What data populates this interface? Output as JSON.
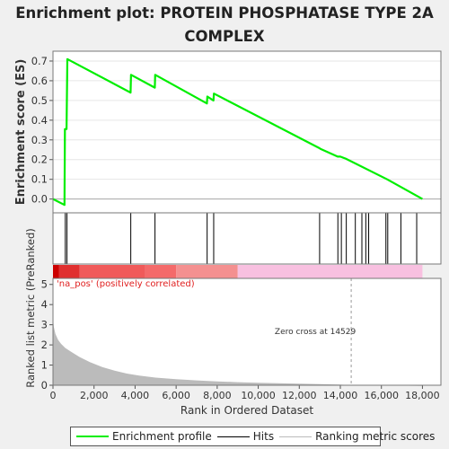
{
  "title_line1": "Enrichment plot: PROTEIN PHOSPHATASE TYPE 2A",
  "title_line2": "COMPLEX",
  "colors": {
    "es_line": "#00ee00",
    "hits": "#000000",
    "metric_fill": "#bbbbbb",
    "pos_label": "#e02020",
    "zero_line": "#aaaaaa"
  },
  "chart_data": [
    {
      "type": "line",
      "name": "enrichment-score",
      "ylabel": "Enrichment score (ES)",
      "xlim": [
        0,
        18900
      ],
      "ylim": [
        -0.07,
        0.75
      ],
      "yticks": [
        "0.0",
        "0.1",
        "0.2",
        "0.3",
        "0.4",
        "0.5",
        "0.6",
        "0.7"
      ],
      "ytick_values": [
        0,
        0.1,
        0.2,
        0.3,
        0.4,
        0.5,
        0.6,
        0.7
      ],
      "x": [
        0,
        560,
        580,
        660,
        700,
        3780,
        3800,
        4960,
        4980,
        7500,
        7520,
        7820,
        7840,
        12950,
        13030,
        13870,
        14000,
        14260,
        16280,
        18000
      ],
      "y": [
        0.0,
        -0.03,
        0.355,
        0.355,
        0.71,
        0.54,
        0.63,
        0.565,
        0.63,
        0.485,
        0.52,
        0.5,
        0.535,
        0.26,
        0.255,
        0.215,
        0.215,
        0.205,
        0.1,
        0.0
      ]
    },
    {
      "type": "scatter",
      "name": "hits",
      "x": [
        600,
        680,
        3790,
        4970,
        7510,
        7830,
        12990,
        13880,
        14050,
        14290,
        14730,
        15050,
        15240,
        15380,
        16220,
        16310,
        16950,
        17720
      ]
    },
    {
      "type": "area",
      "name": "ranked-list-metric",
      "xlabel": "Rank in Ordered Dataset",
      "ylabel": "Ranked list metric (PreRanked)",
      "xlim": [
        0,
        18900
      ],
      "ylim": [
        0,
        5.3
      ],
      "xticks": [
        "0",
        "2,000",
        "4,000",
        "6,000",
        "8,000",
        "10,000",
        "12,000",
        "14,000",
        "16,000",
        "18,000"
      ],
      "xtick_values": [
        0,
        2000,
        4000,
        6000,
        8000,
        10000,
        12000,
        14000,
        16000,
        18000
      ],
      "yticks": [
        "0",
        "1",
        "2",
        "3",
        "4",
        "5"
      ],
      "ytick_values": [
        0,
        1,
        2,
        3,
        4,
        5
      ],
      "x": [
        0,
        40,
        120,
        250,
        400,
        600,
        900,
        1300,
        1800,
        2400,
        3000,
        3600,
        4200,
        5000,
        6000,
        7000,
        8000,
        9000,
        10000,
        11000,
        12000,
        13000,
        14000,
        14529,
        15000,
        16000,
        17000,
        18000
      ],
      "values": [
        3.35,
        2.9,
        2.55,
        2.25,
        2.05,
        1.85,
        1.65,
        1.4,
        1.15,
        0.9,
        0.72,
        0.58,
        0.48,
        0.38,
        0.3,
        0.24,
        0.19,
        0.15,
        0.12,
        0.1,
        0.08,
        0.06,
        0.03,
        0.0,
        -0.01,
        -0.015,
        -0.02,
        -0.03
      ],
      "zero_cross": 14529,
      "annotation": "Zero cross at 14529",
      "pos_label": "'na_pos' (positively correlated)"
    },
    {
      "type": "heatmap",
      "name": "rank-color-bar",
      "segments": [
        {
          "end": 300,
          "color": "#cc0000"
        },
        {
          "end": 1300,
          "color": "#e03030"
        },
        {
          "end": 4500,
          "color": "#f05a5a"
        },
        {
          "end": 6000,
          "color": "#f46a6a"
        },
        {
          "end": 9000,
          "color": "#f49090"
        },
        {
          "end": 18000,
          "color": "#f8c0e0"
        }
      ]
    }
  ],
  "legend": {
    "es": "Enrichment profile",
    "hits": "Hits",
    "metric": "Ranking metric scores"
  }
}
